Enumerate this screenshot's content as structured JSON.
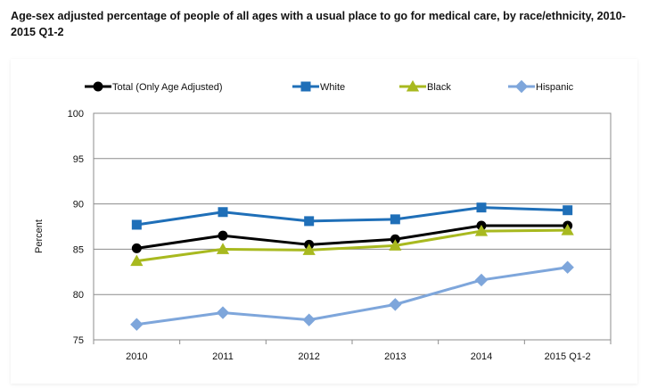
{
  "chart_data": {
    "type": "line",
    "title": "Age-sex adjusted percentage of people of all ages with a usual place to go for medical care, by race/ethnicity, 2010-2015 Q1-2",
    "xlabel": "",
    "ylabel": "Percent",
    "categories": [
      "2010",
      "2011",
      "2012",
      "2013",
      "2014",
      "2015 Q1-2"
    ],
    "ylim": [
      75,
      100
    ],
    "yticks": [
      75,
      80,
      85,
      90,
      95,
      100
    ],
    "grid": true,
    "legend_position": "top",
    "series": [
      {
        "name": "Total (Only Age Adjusted)",
        "values": [
          85.1,
          86.5,
          85.5,
          86.1,
          87.6,
          87.6
        ],
        "color": "#000000",
        "marker": "circle"
      },
      {
        "name": "White",
        "values": [
          87.7,
          89.1,
          88.1,
          88.3,
          89.6,
          89.3
        ],
        "color": "#1F6FB8",
        "marker": "square"
      },
      {
        "name": "Black",
        "values": [
          83.7,
          85.0,
          84.9,
          85.4,
          87.0,
          87.1
        ],
        "color": "#A8B91F",
        "marker": "triangle"
      },
      {
        "name": "Hispanic",
        "values": [
          76.7,
          78.0,
          77.2,
          78.9,
          81.6,
          83.0
        ],
        "color": "#7EA6DB",
        "marker": "diamond"
      }
    ]
  }
}
